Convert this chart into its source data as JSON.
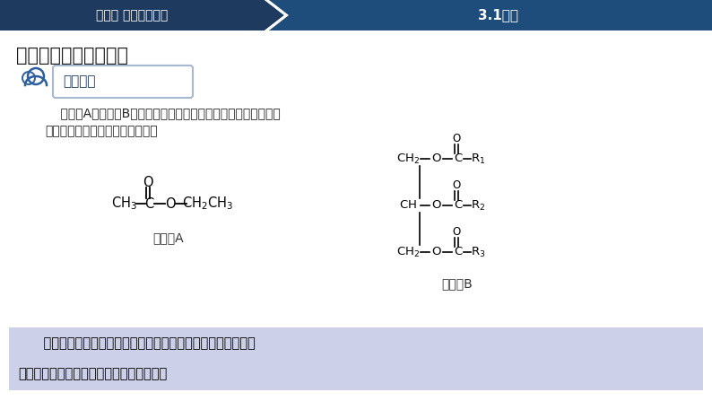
{
  "bg_color": "#ffffff",
  "header_bg1": "#1e3a5f",
  "header_bg2": "#1e4d7b",
  "header_text1": "专题三 脂类和纤维素",
  "header_text2": "3.1油脂",
  "header_text_color": "#ffffff",
  "title_text": "一、油脂的组成及结构",
  "title_color": "#1a1a1a",
  "discussion_box_color": "#a8b8d0",
  "discussion_text": "交流讨论",
  "discussion_text_color": "#1e3a5f",
  "body_text1": "    结构式A和结构式B为两种不同有机物分子的结构简式，你能辨识",
  "body_text2": "出它们的组成和结构的异同点吗？",
  "label_A": "结构式A",
  "label_B": "结构式B",
  "bottom_box_color": "#ccd0e8",
  "bottom_text1": "    以上两种有机物分子结构简式的相同点是都含有酯键，都属于",
  "bottom_text2": "酯类；不同点是它们所含的酯键数目不同。",
  "bottom_text_color": "#000000",
  "icon_color": "#2d5fa0",
  "icon_border_color": "#2d5fa0"
}
